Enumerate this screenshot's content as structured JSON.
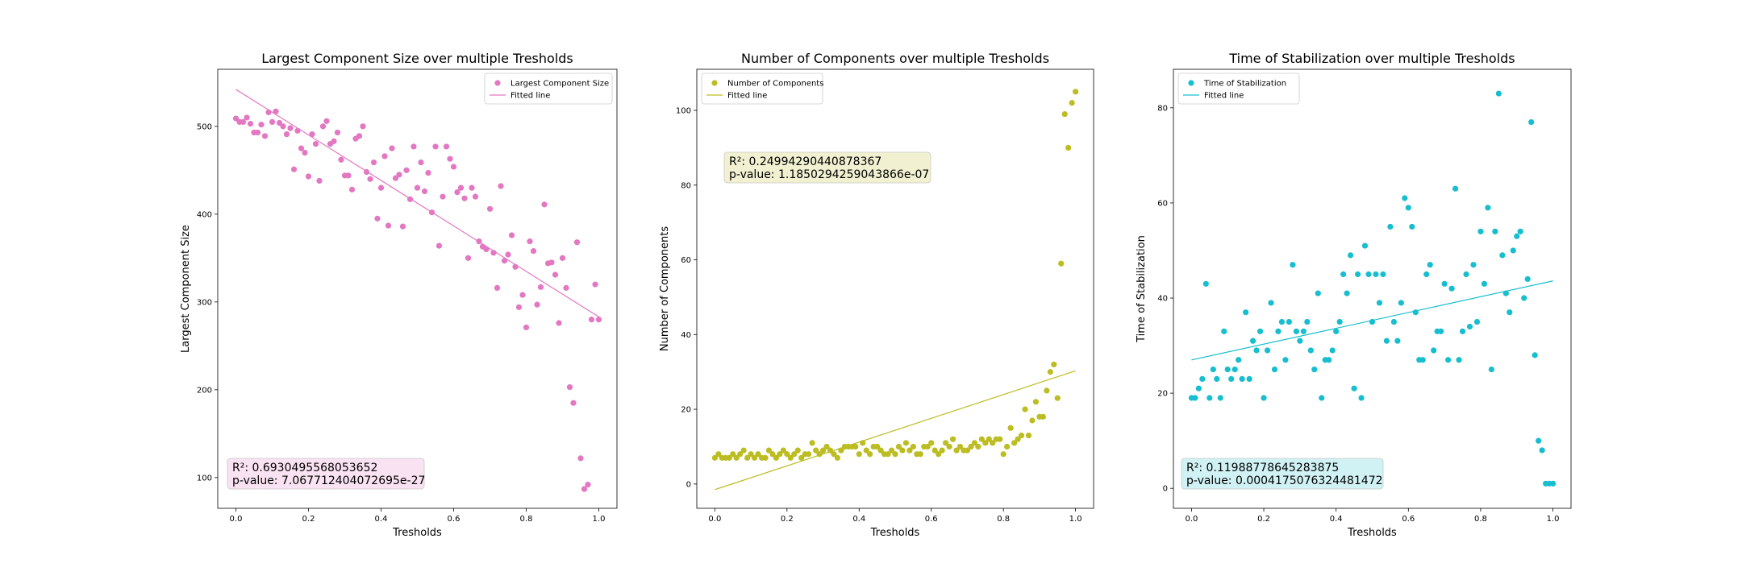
{
  "chart_data": [
    {
      "type": "scatter",
      "title": "Largest Component Size over multiple Tresholds",
      "xlabel": "Tresholds",
      "ylabel": "Largest Component Size",
      "xlim": [
        -0.05,
        1.05
      ],
      "ylim": [
        65,
        565
      ],
      "xticks": [
        0.0,
        0.2,
        0.4,
        0.6,
        0.8,
        1.0
      ],
      "xtick_labels": [
        "0.0",
        "0.2",
        "0.4",
        "0.6",
        "0.8",
        "1.0"
      ],
      "yticks": [
        100,
        200,
        300,
        400,
        500
      ],
      "ytick_labels": [
        "100",
        "200",
        "300",
        "400",
        "500"
      ],
      "color": "#e377c2",
      "legend": [
        "Largest Component Size",
        "Fitted line"
      ],
      "legend_position": "upper right",
      "series": [
        {
          "name": "Largest Component Size",
          "x": [
            0.0,
            0.01,
            0.02,
            0.03,
            0.04,
            0.05,
            0.06,
            0.07,
            0.08,
            0.09,
            0.1,
            0.11,
            0.12,
            0.13,
            0.14,
            0.15,
            0.16,
            0.17,
            0.18,
            0.19,
            0.2,
            0.21,
            0.22,
            0.23,
            0.24,
            0.25,
            0.26,
            0.27,
            0.28,
            0.29,
            0.3,
            0.31,
            0.32,
            0.33,
            0.34,
            0.35,
            0.36,
            0.37,
            0.38,
            0.39,
            0.4,
            0.41,
            0.42,
            0.43,
            0.44,
            0.45,
            0.46,
            0.47,
            0.48,
            0.49,
            0.5,
            0.51,
            0.52,
            0.53,
            0.54,
            0.55,
            0.56,
            0.57,
            0.58,
            0.59,
            0.6,
            0.61,
            0.62,
            0.63,
            0.64,
            0.65,
            0.66,
            0.67,
            0.68,
            0.69,
            0.7,
            0.71,
            0.72,
            0.73,
            0.74,
            0.75,
            0.76,
            0.77,
            0.78,
            0.79,
            0.8,
            0.81,
            0.82,
            0.83,
            0.84,
            0.85,
            0.86,
            0.87,
            0.88,
            0.89,
            0.9,
            0.91,
            0.92,
            0.93,
            0.94,
            0.95,
            0.96,
            0.97,
            0.98,
            0.99,
            1.0
          ],
          "y": [
            509,
            505,
            505,
            510,
            503,
            493,
            493,
            502,
            489,
            516,
            505,
            517,
            504,
            500,
            491,
            498,
            451,
            495,
            475,
            470,
            443,
            491,
            480,
            438,
            500,
            506,
            480,
            483,
            493,
            462,
            444,
            444,
            428,
            486,
            489,
            500,
            448,
            440,
            459,
            395,
            430,
            466,
            387,
            475,
            441,
            445,
            386,
            450,
            417,
            477,
            430,
            459,
            426,
            447,
            402,
            477,
            364,
            420,
            477,
            463,
            454,
            425,
            430,
            418,
            350,
            430,
            420,
            369,
            363,
            360,
            406,
            356,
            316,
            432,
            347,
            354,
            376,
            340,
            294,
            308,
            271,
            369,
            358,
            297,
            317,
            411,
            344,
            345,
            331,
            276,
            350,
            316,
            203,
            185,
            368,
            122,
            87,
            92,
            280,
            320,
            280
          ],
          "marker": "dot"
        },
        {
          "name": "Fitted line",
          "x": [
            0.0,
            1.0
          ],
          "y": [
            542,
            283
          ],
          "marker": "line"
        }
      ],
      "annotation": [
        "R²: 0.6930495568053652",
        "p-value: 7.067712404072695e-27"
      ]
    },
    {
      "type": "scatter",
      "title": "Number of Components over multiple Tresholds",
      "xlabel": "Tresholds",
      "ylabel": "Number of Components",
      "xlim": [
        -0.05,
        1.05
      ],
      "ylim": [
        -6.5,
        111
      ],
      "xticks": [
        0.0,
        0.2,
        0.4,
        0.6,
        0.8,
        1.0
      ],
      "xtick_labels": [
        "0.0",
        "0.2",
        "0.4",
        "0.6",
        "0.8",
        "1.0"
      ],
      "yticks": [
        0,
        20,
        40,
        60,
        80,
        100
      ],
      "ytick_labels": [
        "0",
        "20",
        "40",
        "60",
        "80",
        "100"
      ],
      "color": "#bcbd22",
      "legend": [
        "Number of Components",
        "Fitted line"
      ],
      "legend_position": "upper left",
      "series": [
        {
          "name": "Number of Components",
          "x": [
            0.0,
            0.01,
            0.02,
            0.03,
            0.04,
            0.05,
            0.06,
            0.07,
            0.08,
            0.09,
            0.1,
            0.11,
            0.12,
            0.13,
            0.14,
            0.15,
            0.16,
            0.17,
            0.18,
            0.19,
            0.2,
            0.21,
            0.22,
            0.23,
            0.24,
            0.25,
            0.26,
            0.27,
            0.28,
            0.29,
            0.3,
            0.31,
            0.32,
            0.33,
            0.34,
            0.35,
            0.36,
            0.37,
            0.38,
            0.39,
            0.4,
            0.41,
            0.42,
            0.43,
            0.44,
            0.45,
            0.46,
            0.47,
            0.48,
            0.49,
            0.5,
            0.51,
            0.52,
            0.53,
            0.54,
            0.55,
            0.56,
            0.57,
            0.58,
            0.59,
            0.6,
            0.61,
            0.62,
            0.63,
            0.64,
            0.65,
            0.66,
            0.67,
            0.68,
            0.69,
            0.7,
            0.71,
            0.72,
            0.73,
            0.74,
            0.75,
            0.76,
            0.77,
            0.78,
            0.79,
            0.8,
            0.81,
            0.82,
            0.83,
            0.84,
            0.85,
            0.86,
            0.87,
            0.88,
            0.89,
            0.9,
            0.91,
            0.92,
            0.93,
            0.94,
            0.95,
            0.96,
            0.97,
            0.98,
            0.99,
            1.0
          ],
          "y": [
            7,
            8,
            7,
            7,
            7,
            8,
            7,
            8,
            9,
            7,
            8,
            7,
            8,
            7,
            7,
            9,
            8,
            7,
            8,
            9,
            8,
            7,
            8,
            9,
            7,
            8,
            8,
            11,
            9,
            8,
            9,
            10,
            9,
            8,
            7,
            9,
            10,
            10,
            10,
            10,
            8,
            11,
            9,
            8,
            10,
            10,
            9,
            8,
            8,
            9,
            8,
            10,
            9,
            11,
            9,
            10,
            8,
            8,
            10,
            10,
            11,
            9,
            8,
            9,
            11,
            10,
            12,
            9,
            10,
            9,
            9,
            10,
            11,
            10,
            12,
            11,
            12,
            11,
            12,
            12,
            8,
            10,
            15,
            11,
            12,
            13,
            20,
            13,
            17,
            22,
            18,
            18,
            25,
            30,
            32,
            23,
            59,
            99,
            90,
            102,
            105
          ],
          "marker": "dot"
        },
        {
          "name": "Fitted line",
          "x": [
            0.0,
            1.0
          ],
          "y": [
            -1.5,
            30.3
          ],
          "marker": "line"
        }
      ],
      "annotation": [
        "R²: 0.24994290440878367",
        "p-value: 1.1850294259043866e-07"
      ]
    },
    {
      "type": "scatter",
      "title": "Time of Stabilization over multiple Tresholds",
      "xlabel": "Tresholds",
      "ylabel": "Time of Stabilization",
      "xlim": [
        -0.05,
        1.05
      ],
      "ylim": [
        -4.2,
        88.1
      ],
      "xticks": [
        0.0,
        0.2,
        0.4,
        0.6,
        0.8,
        1.0
      ],
      "xtick_labels": [
        "0.0",
        "0.2",
        "0.4",
        "0.6",
        "0.8",
        "1.0"
      ],
      "yticks": [
        0,
        20,
        40,
        60,
        80
      ],
      "ytick_labels": [
        "0",
        "20",
        "40",
        "60",
        "80"
      ],
      "color": "#17becf",
      "legend": [
        "Time of Stabilization",
        "Fitted line"
      ],
      "legend_position": "upper left",
      "series": [
        {
          "name": "Time of Stabilization",
          "x": [
            0.0,
            0.01,
            0.02,
            0.03,
            0.04,
            0.05,
            0.06,
            0.07,
            0.08,
            0.09,
            0.1,
            0.11,
            0.12,
            0.13,
            0.14,
            0.15,
            0.16,
            0.17,
            0.18,
            0.19,
            0.2,
            0.21,
            0.22,
            0.23,
            0.24,
            0.25,
            0.26,
            0.27,
            0.28,
            0.29,
            0.3,
            0.31,
            0.32,
            0.33,
            0.34,
            0.35,
            0.36,
            0.37,
            0.38,
            0.39,
            0.4,
            0.41,
            0.42,
            0.43,
            0.44,
            0.45,
            0.46,
            0.47,
            0.48,
            0.49,
            0.5,
            0.51,
            0.52,
            0.53,
            0.54,
            0.55,
            0.56,
            0.57,
            0.58,
            0.59,
            0.6,
            0.61,
            0.62,
            0.63,
            0.64,
            0.65,
            0.66,
            0.67,
            0.68,
            0.69,
            0.7,
            0.71,
            0.72,
            0.73,
            0.74,
            0.75,
            0.76,
            0.77,
            0.78,
            0.79,
            0.8,
            0.81,
            0.82,
            0.83,
            0.84,
            0.85,
            0.86,
            0.87,
            0.88,
            0.89,
            0.9,
            0.91,
            0.92,
            0.93,
            0.94,
            0.95,
            0.96,
            0.97,
            0.98,
            0.99,
            1.0
          ],
          "y": [
            19,
            19,
            21,
            23,
            43,
            19,
            25,
            23,
            19,
            33,
            25,
            23,
            25,
            27,
            23,
            37,
            23,
            31,
            29,
            33,
            19,
            29,
            39,
            25,
            33,
            35,
            27,
            35,
            47,
            33,
            31,
            33,
            35,
            29,
            25,
            41,
            19,
            27,
            27,
            29,
            33,
            35,
            45,
            41,
            49,
            21,
            45,
            19,
            51,
            45,
            35,
            45,
            39,
            45,
            31,
            55,
            35,
            31,
            39,
            61,
            59,
            55,
            37,
            27,
            27,
            45,
            47,
            29,
            33,
            33,
            43,
            27,
            42,
            63,
            27,
            33,
            45,
            34,
            47,
            35,
            54,
            43,
            59,
            25,
            54,
            83,
            49,
            41,
            37,
            50,
            53,
            54,
            40,
            44,
            77,
            28,
            10,
            8,
            1,
            1,
            1
          ],
          "marker": "dot"
        },
        {
          "name": "Fitted line",
          "x": [
            0.0,
            1.0
          ],
          "y": [
            27.0,
            43.6
          ],
          "marker": "line"
        }
      ],
      "annotation": [
        "R²: 0.11988778645283875",
        "p-value: 0.0004175076324481472"
      ]
    }
  ],
  "colors": {
    "pink": "#e377c2",
    "olive": "#bcbd22",
    "cyan": "#17becf",
    "pink_box": "#f9e2f2",
    "olive_box": "#f1f1d2",
    "cyan_box": "#d1f2f5"
  }
}
